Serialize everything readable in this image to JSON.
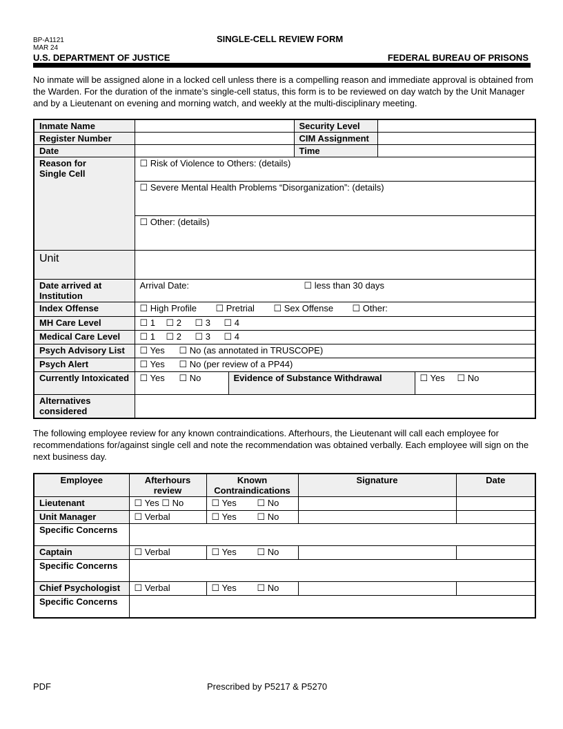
{
  "header": {
    "form_number": "BP-A1121",
    "form_date": "MAR 24",
    "title": "SINGLE-CELL REVIEW FORM",
    "department": "U.S. DEPARTMENT OF JUSTICE",
    "bureau": "FEDERAL BUREAU OF PRISONS"
  },
  "intro": "No inmate will be assigned alone in a locked cell unless there is a compelling reason and immediate approval is obtained from the Warden.  For the duration of the inmate’s single-cell status, this form is to be reviewed on day watch by the Unit Manager and by a Lieutenant on evening and morning watch, and weekly at the multi-disciplinary meeting.",
  "inmate_table": {
    "inmate_name": "Inmate Name",
    "register_number": "Register Number",
    "date": "Date",
    "security_level": "Security Level",
    "cim_assignment": "CIM Assignment",
    "time": "Time",
    "reason_label": "Reason for Single Cell",
    "reason_violence": "☐ Risk of Violence to Others: (details)",
    "reason_mental": "☐ Severe Mental Health Problems “Disorganization”: (details)",
    "reason_other": "☐ Other: (details)",
    "unit": "Unit",
    "date_arrived_label": "Date arrived at Institution",
    "arrival_date": "Arrival Date:",
    "less_than_30": "☐ less than 30 days",
    "index_offense": "Index Offense",
    "index_options": [
      "☐ High Profile",
      "☐ Pretrial",
      "☐ Sex Offense",
      "☐ Other:"
    ],
    "mh_care_level": "MH Care Level",
    "mh_options": [
      "☐ 1",
      "☐ 2",
      "☐ 3",
      "☐ 4"
    ],
    "medical_care_level": "Medical Care Level",
    "medical_options": [
      "☐ 1",
      "☐ 2",
      "☐ 3",
      "☐ 4"
    ],
    "psych_advisory": "Psych Advisory List",
    "psych_advisory_options": [
      "☐ Yes",
      "☐ No (as annotated in TRUSCOPE)"
    ],
    "psych_alert": "Psych Alert",
    "psych_alert_options": [
      "☐ Yes",
      "☐  No  (per review of a PP44)"
    ],
    "intoxicated": "Currently Intoxicated",
    "intoxicated_options": [
      "☐ Yes",
      "☐ No"
    ],
    "withdrawal": "Evidence of Substance Withdrawal",
    "withdrawal_options": [
      "☐ Yes",
      "☐ No"
    ],
    "alternatives": "Alternatives considered"
  },
  "instructions": "The following employee review for any known contraindications. Afterhours, the Lieutenant will call each employee for recommendations for/against single cell and note the recommendation was obtained verbally. Each employee will sign on the next business day.",
  "employee_table": {
    "headers": [
      "Employee",
      "Afterhours review",
      "Known Contraindications",
      "Signature",
      "Date"
    ],
    "rows": [
      {
        "employee": "Lieutenant",
        "afterhours": "☐ Yes ☐  No",
        "yes": "☐ Yes",
        "no": "☐ No"
      },
      {
        "employee": "Unit Manager",
        "afterhours": "☐ Verbal",
        "yes": "☐ Yes",
        "no": "☐ No"
      },
      {
        "employee": "Captain",
        "afterhours": "☐ Verbal",
        "yes": "☐ Yes",
        "no": "☐ No"
      },
      {
        "employee": "Chief Psychologist",
        "afterhours": "☐ Verbal",
        "yes": "☐ Yes",
        "no": "☐ No"
      }
    ],
    "specific_concerns": "Specific Concerns"
  },
  "footer": {
    "left": "PDF",
    "center": "Prescribed by P5217 & P5270"
  }
}
